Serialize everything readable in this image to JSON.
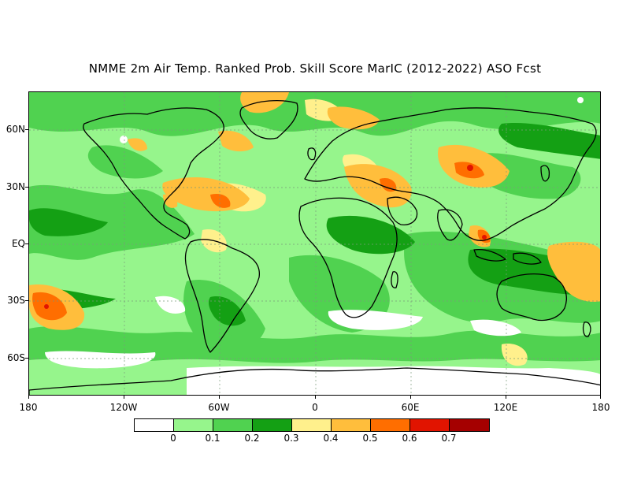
{
  "title": "NMME 2m Air Temp. Ranked Prob. Skill Score MarIC (2012-2022) ASO Fcst",
  "lat_labels": [
    "60N",
    "30N",
    "EQ",
    "30S",
    "60S"
  ],
  "lon_labels": [
    "180",
    "120W",
    "60W",
    "0",
    "60E",
    "120E",
    "180"
  ],
  "colorbar": {
    "colors": [
      "#ffffff",
      "#96f58c",
      "#50d250",
      "#14a014",
      "#fff08c",
      "#ffbe3c",
      "#ff6e00",
      "#e11400",
      "#a50000"
    ],
    "labels": [
      "0",
      "0.1",
      "0.2",
      "0.3",
      "0.4",
      "0.5",
      "0.6",
      "0.7"
    ]
  },
  "map": {
    "base_color": "#96f58c",
    "coastline_color": "#000000",
    "gridline_color": "#7a9a7a"
  }
}
